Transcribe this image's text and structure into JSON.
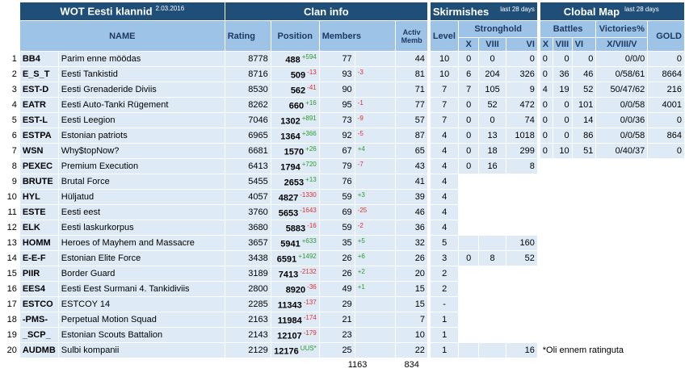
{
  "header": {
    "title": "WOT Eesti klannid",
    "date": "2.03.2016",
    "clan_info": "Clan info",
    "skirmishes": "Skirmishes",
    "skirmishes_note": "last 28 days",
    "global_map": "Clobal Map",
    "global_map_note": "last 28 days"
  },
  "columns": {
    "name": "NAME",
    "rating": "Rating",
    "position": "Position",
    "members": "Members",
    "activ_memb": "Activ Memb",
    "level": "Level",
    "stronghold": "Stronghold",
    "battles": "Battles",
    "victories": "Victories%",
    "gold": "GOLD",
    "sub_x": "X",
    "sub_viii": "VIII",
    "sub_vi": "VI",
    "sub_vict": "X/VIII/V"
  },
  "rows": [
    {
      "n": "1",
      "tag": "BB4",
      "name": "Parim enne möödas",
      "rating": "8778",
      "pos": "488",
      "pos_d": "+594",
      "pos_dir": "up",
      "mem": "77",
      "mem_d": "",
      "mem_dir": "",
      "act": "44",
      "lvl": "10",
      "sx": "0",
      "sviii": "0",
      "svi": "0",
      "bx": "0",
      "bviii": "0",
      "bvi": "0",
      "vict": "0/0/0",
      "gold": "0"
    },
    {
      "n": "2",
      "tag": "E_S_T",
      "name": "Eesti Tankistid",
      "rating": "8716",
      "pos": "509",
      "pos_d": "-13",
      "pos_dir": "dn",
      "mem": "93",
      "mem_d": "-3",
      "mem_dir": "dn",
      "act": "81",
      "lvl": "10",
      "sx": "6",
      "sviii": "204",
      "svi": "326",
      "bx": "0",
      "bviii": "36",
      "bvi": "46",
      "vict": "0/58/61",
      "gold": "8664"
    },
    {
      "n": "3",
      "tag": "EST-D",
      "name": "Eesti Grenaderide Diviis",
      "rating": "8530",
      "pos": "562",
      "pos_d": "-41",
      "pos_dir": "dn",
      "mem": "90",
      "mem_d": "",
      "mem_dir": "",
      "act": "71",
      "lvl": "7",
      "sx": "7",
      "sviii": "105",
      "svi": "9",
      "bx": "4",
      "bviii": "19",
      "bvi": "52",
      "vict": "50/47/62",
      "gold": "216"
    },
    {
      "n": "4",
      "tag": "EATR",
      "name": "Eesti Auto-Tanki Rügement",
      "rating": "8262",
      "pos": "660",
      "pos_d": "+16",
      "pos_dir": "up",
      "mem": "95",
      "mem_d": "-1",
      "mem_dir": "dn",
      "act": "77",
      "lvl": "7",
      "sx": "0",
      "sviii": "52",
      "svi": "472",
      "bx": "0",
      "bviii": "0",
      "bvi": "101",
      "vict": "0/0/58",
      "gold": "4001"
    },
    {
      "n": "5",
      "tag": "EST-L",
      "name": "Eesti Leegion",
      "rating": "7046",
      "pos": "1302",
      "pos_d": "+891",
      "pos_dir": "up",
      "mem": "73",
      "mem_d": "-9",
      "mem_dir": "dn",
      "act": "57",
      "lvl": "7",
      "sx": "0",
      "sviii": "0",
      "svi": "74",
      "bx": "0",
      "bviii": "0",
      "bvi": "14",
      "vict": "0/0/36",
      "gold": "0"
    },
    {
      "n": "6",
      "tag": "ESTPA",
      "name": "Estonian patriots",
      "rating": "6965",
      "pos": "1364",
      "pos_d": "+366",
      "pos_dir": "up",
      "mem": "92",
      "mem_d": "-5",
      "mem_dir": "dn",
      "act": "87",
      "lvl": "4",
      "sx": "0",
      "sviii": "13",
      "svi": "1018",
      "bx": "0",
      "bviii": "0",
      "bvi": "86",
      "vict": "0/0/58",
      "gold": "864"
    },
    {
      "n": "7",
      "tag": "WSN",
      "name": "Why$topNow?",
      "rating": "6681",
      "pos": "1570",
      "pos_d": "+26",
      "pos_dir": "up",
      "mem": "67",
      "mem_d": "+4",
      "mem_dir": "up",
      "act": "65",
      "lvl": "4",
      "sx": "0",
      "sviii": "18",
      "svi": "299",
      "bx": "0",
      "bviii": "10",
      "bvi": "51",
      "vict": "0/40/37",
      "gold": "0"
    },
    {
      "n": "8",
      "tag": "PEXEC",
      "name": "Premium Execution",
      "rating": "6413",
      "pos": "1794",
      "pos_d": "+720",
      "pos_dir": "up",
      "mem": "79",
      "mem_d": "-7",
      "mem_dir": "dn",
      "act": "43",
      "lvl": "4",
      "sx": "0",
      "sviii": "16",
      "svi": "8",
      "bx": "",
      "bviii": "",
      "bvi": "",
      "vict": "",
      "gold": ""
    },
    {
      "n": "9",
      "tag": "BRUTE",
      "name": "Brutal Force",
      "rating": "5455",
      "pos": "2653",
      "pos_d": "+13",
      "pos_dir": "up",
      "mem": "76",
      "mem_d": "",
      "mem_dir": "",
      "act": "41",
      "lvl": "4",
      "sx": "",
      "sviii": "",
      "svi": "",
      "bx": "",
      "bviii": "",
      "bvi": "",
      "vict": "",
      "gold": ""
    },
    {
      "n": "10",
      "tag": "HYL",
      "name": "Hüljatud",
      "rating": "4057",
      "pos": "4827",
      "pos_d": "-1330",
      "pos_dir": "dn",
      "mem": "59",
      "mem_d": "+3",
      "mem_dir": "up",
      "act": "39",
      "lvl": "4",
      "sx": "",
      "sviii": "",
      "svi": "",
      "bx": "",
      "bviii": "",
      "bvi": "",
      "vict": "",
      "gold": ""
    },
    {
      "n": "11",
      "tag": "ESTE",
      "name": "Eesti eest",
      "rating": "3760",
      "pos": "5653",
      "pos_d": "-1643",
      "pos_dir": "dn",
      "mem": "69",
      "mem_d": "-25",
      "mem_dir": "dn",
      "act": "46",
      "lvl": "4",
      "sx": "",
      "sviii": "",
      "svi": "",
      "bx": "",
      "bviii": "",
      "bvi": "",
      "vict": "",
      "gold": ""
    },
    {
      "n": "12",
      "tag": "ELK",
      "name": "Eesti laskurkorpus",
      "rating": "3680",
      "pos": "5883",
      "pos_d": "-16",
      "pos_dir": "dn",
      "mem": "59",
      "mem_d": "-2",
      "mem_dir": "dn",
      "act": "36",
      "lvl": "4",
      "sx": "",
      "sviii": "",
      "svi": "",
      "bx": "",
      "bviii": "",
      "bvi": "",
      "vict": "",
      "gold": ""
    },
    {
      "n": "13",
      "tag": "HOMM",
      "name": "Heroes of Mayhem and Massacre",
      "rating": "3657",
      "pos": "5941",
      "pos_d": "+633",
      "pos_dir": "up",
      "mem": "35",
      "mem_d": "+5",
      "mem_dir": "up",
      "act": "32",
      "lvl": "5",
      "sx": "",
      "sviii": "",
      "svi": "160",
      "bx": "",
      "bviii": "",
      "bvi": "",
      "vict": "",
      "gold": ""
    },
    {
      "n": "14",
      "tag": "E-E-F",
      "name": "Estonian Elite Force",
      "rating": "3438",
      "pos": "6591",
      "pos_d": "+1492",
      "pos_dir": "up",
      "mem": "26",
      "mem_d": "+6",
      "mem_dir": "up",
      "act": "26",
      "lvl": "3",
      "sx": "0",
      "sviii": "8",
      "svi": "52",
      "bx": "",
      "bviii": "",
      "bvi": "",
      "vict": "",
      "gold": ""
    },
    {
      "n": "15",
      "tag": "PIIR",
      "name": "Border Guard",
      "rating": "3189",
      "pos": "7413",
      "pos_d": "-2132",
      "pos_dir": "dn",
      "mem": "26",
      "mem_d": "+2",
      "mem_dir": "up",
      "act": "20",
      "lvl": "2",
      "sx": "",
      "sviii": "",
      "svi": "",
      "bx": "",
      "bviii": "",
      "bvi": "",
      "vict": "",
      "gold": ""
    },
    {
      "n": "16",
      "tag": "EES4",
      "name": "Eesti Eest Surmani 4. Tankidiviis",
      "rating": "2800",
      "pos": "8920",
      "pos_d": "-36",
      "pos_dir": "dn",
      "mem": "49",
      "mem_d": "+1",
      "mem_dir": "up",
      "act": "15",
      "lvl": "2",
      "sx": "",
      "sviii": "",
      "svi": "",
      "bx": "",
      "bviii": "",
      "bvi": "",
      "vict": "",
      "gold": ""
    },
    {
      "n": "17",
      "tag": "ESTCO",
      "name": "ESTCOY 14",
      "rating": "2285",
      "pos": "11343",
      "pos_d": "-137",
      "pos_dir": "dn",
      "mem": "29",
      "mem_d": "",
      "mem_dir": "",
      "act": "15",
      "lvl": "-",
      "sx": "",
      "sviii": "",
      "svi": "",
      "bx": "",
      "bviii": "",
      "bvi": "",
      "vict": "",
      "gold": ""
    },
    {
      "n": "18",
      "tag": "-PMS-",
      "name": "Perpetual Motion Squad",
      "rating": "2163",
      "pos": "11984",
      "pos_d": "-174",
      "pos_dir": "dn",
      "mem": "21",
      "mem_d": "",
      "mem_dir": "",
      "act": "7",
      "lvl": "1",
      "sx": "",
      "sviii": "",
      "svi": "",
      "bx": "",
      "bviii": "",
      "bvi": "",
      "vict": "",
      "gold": ""
    },
    {
      "n": "19",
      "tag": "_SCP_",
      "name": "Estonian Scouts Battalion",
      "rating": "2143",
      "pos": "12107",
      "pos_d": "-179",
      "pos_dir": "dn",
      "mem": "23",
      "mem_d": "",
      "mem_dir": "",
      "act": "10",
      "lvl": "1",
      "sx": "",
      "sviii": "",
      "svi": "",
      "bx": "",
      "bviii": "",
      "bvi": "",
      "vict": "",
      "gold": ""
    },
    {
      "n": "20",
      "tag": "AUDMB",
      "name": "Sulbi kompanii",
      "rating": "2129",
      "pos": "12176",
      "pos_d": "UUS*",
      "pos_dir": "up",
      "mem": "25",
      "mem_d": "",
      "mem_dir": "",
      "act": "22",
      "lvl": "1",
      "sx": "",
      "sviii": "",
      "svi": "16",
      "bx": "",
      "bviii": "",
      "bvi": "",
      "vict": "",
      "gold": ""
    }
  ],
  "footnote": "*Oli ennem ratinguta",
  "totals": {
    "members": "1163",
    "active": "834"
  },
  "colors": {
    "header_dark": "#1f4e79",
    "header_light": "#9dc3e6",
    "row_fill": "#deeaf6",
    "up": "#2e9b2e",
    "down": "#e03030"
  }
}
